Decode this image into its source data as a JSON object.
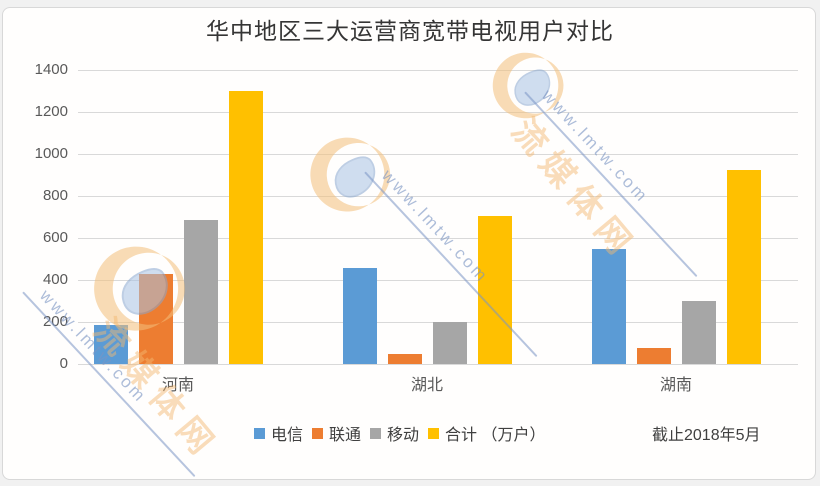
{
  "title": "华中地区三大运营商宽带电视用户对比",
  "note": "截止2018年5月",
  "watermark": {
    "url_text": "www.lmtw.com",
    "cn_text": "流媒体网",
    "logo_name": "lmtw-logo"
  },
  "chart_data": {
    "type": "bar",
    "title": "华中地区三大运营商宽带电视用户对比",
    "categories": [
      "河南",
      "湖北",
      "湖南"
    ],
    "category_keys": [
      "henan",
      "hubei",
      "hunan"
    ],
    "series": [
      {
        "key": "telecom",
        "name": "电信",
        "color": "#5B9BD5",
        "values": [
          185,
          455,
          550
        ]
      },
      {
        "key": "unicom",
        "name": "联通",
        "color": "#ED7D31",
        "values": [
          430,
          50,
          75
        ]
      },
      {
        "key": "mobile",
        "name": "移动",
        "color": "#A6A6A6",
        "values": [
          685,
          200,
          300
        ]
      },
      {
        "key": "total",
        "name": "合计 （万户）",
        "color": "#FFC000",
        "values": [
          1300,
          705,
          925
        ]
      }
    ],
    "ylim": [
      0,
      1400
    ],
    "yticks": [
      0,
      200,
      400,
      600,
      800,
      1000,
      1200,
      1400
    ],
    "grid": true,
    "legend_position": "bottom",
    "annotation": "截止2018年5月",
    "colors": {
      "gridline": "#d9d9d9",
      "axis_text": "#595959",
      "title_text": "#353535"
    }
  }
}
